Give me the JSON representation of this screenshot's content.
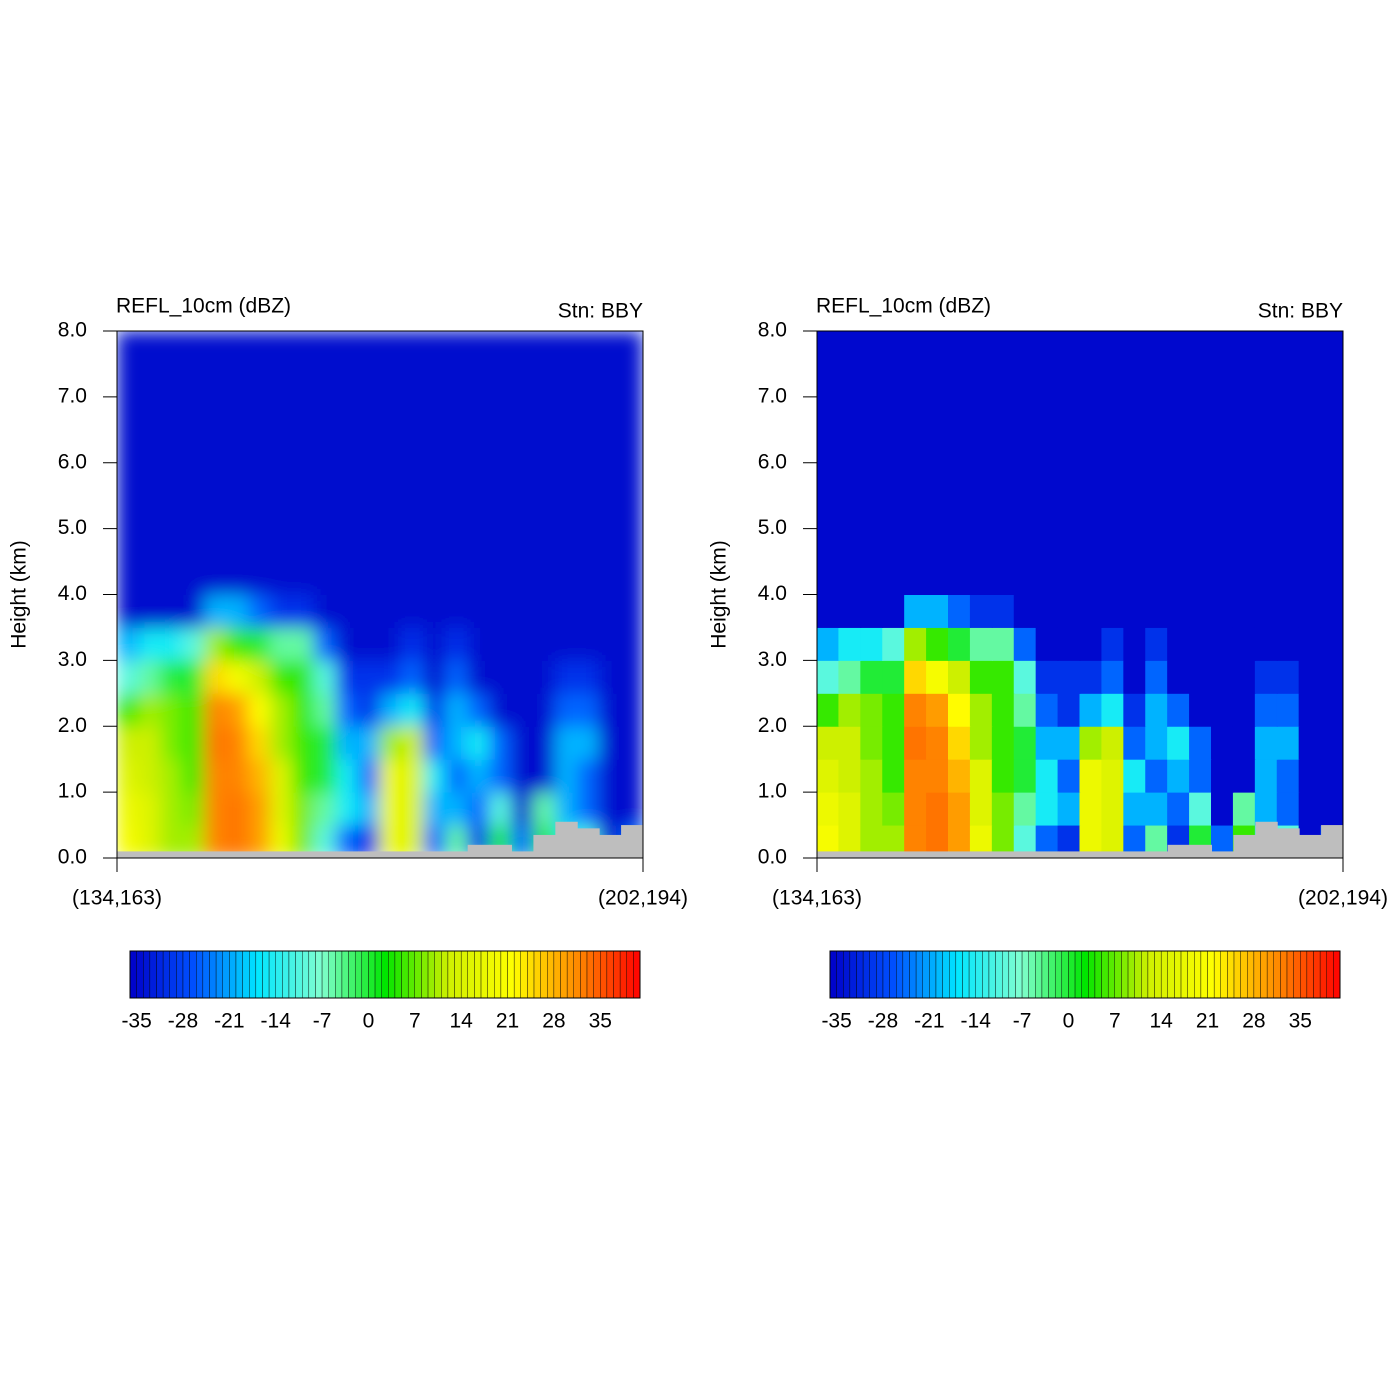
{
  "chart_data": [
    {
      "type": "heatmap",
      "smooth": true,
      "title": "REFL_10cm (dBZ)",
      "subtitle": "Stn: BBY",
      "y_label": "Height (km)",
      "x_tick_labels": [
        "(134,163)",
        "(202,194)"
      ],
      "ylim": [
        0,
        8
      ],
      "yticks": [
        {
          "value": 0,
          "label": "0.0"
        },
        {
          "value": 1,
          "label": "1.0"
        },
        {
          "value": 2,
          "label": "2.0"
        },
        {
          "value": 3,
          "label": "3.0"
        },
        {
          "value": 4,
          "label": "4.0"
        },
        {
          "value": 5,
          "label": "5.0"
        },
        {
          "value": 6,
          "label": "6.0"
        },
        {
          "value": 7,
          "label": "7.0"
        },
        {
          "value": 8,
          "label": "8.0"
        }
      ],
      "y_edges": [
        0,
        0.5,
        1,
        1.5,
        2,
        2.5,
        3,
        3.5,
        4,
        8
      ],
      "z": [
        [
          20,
          15,
          10,
          10,
          32,
          33,
          30,
          18,
          8,
          -10,
          -25,
          -30,
          18,
          15,
          -25,
          -5,
          -30,
          0,
          -25,
          5,
          -15,
          -10,
          -35,
          -25
        ],
        [
          18,
          15,
          10,
          8,
          32,
          33,
          30,
          15,
          8,
          -5,
          -15,
          -20,
          18,
          15,
          -20,
          -20,
          -25,
          -10,
          -35,
          -5,
          -20,
          -25,
          -35,
          -35
        ],
        [
          15,
          12,
          10,
          5,
          32,
          32,
          28,
          15,
          5,
          0,
          -15,
          -25,
          18,
          15,
          -15,
          -25,
          -20,
          -25,
          -35,
          -35,
          -20,
          -25,
          -35,
          -35
        ],
        [
          12,
          12,
          8,
          5,
          33,
          32,
          25,
          10,
          5,
          0,
          -20,
          -20,
          10,
          12,
          -25,
          -20,
          -15,
          -25,
          -35,
          -35,
          -20,
          -20,
          -35,
          -35
        ],
        [
          5,
          10,
          8,
          5,
          32,
          30,
          22,
          10,
          5,
          -5,
          -25,
          -30,
          -20,
          -15,
          -30,
          -20,
          -25,
          -35,
          -35,
          -35,
          -25,
          -25,
          -35,
          -35
        ],
        [
          -10,
          -5,
          0,
          0,
          25,
          20,
          12,
          5,
          5,
          -10,
          -30,
          -30,
          -30,
          -25,
          -35,
          -25,
          -35,
          -35,
          -35,
          -35,
          -30,
          -30,
          -35,
          -35
        ],
        [
          -20,
          -15,
          -15,
          -10,
          10,
          5,
          0,
          -5,
          -5,
          -25,
          -35,
          -35,
          -35,
          -30,
          -35,
          -30,
          -35,
          -35,
          -35,
          -35,
          -35,
          -35,
          -35,
          -35
        ],
        [
          -35,
          -35,
          -35,
          -35,
          -20,
          -20,
          -25,
          -30,
          -30,
          -35,
          -35,
          -35,
          -35,
          -35,
          -35,
          -35,
          -35,
          -35,
          -35,
          -35,
          -35,
          -35,
          -35,
          -35
        ],
        [
          -35,
          -35,
          -35,
          -35,
          -35,
          -35,
          -35,
          -35,
          -35,
          -35,
          -35,
          -35,
          -35,
          -35,
          -35,
          -35,
          -35,
          -35,
          -35,
          -35,
          -35,
          -35,
          -35,
          -35
        ]
      ],
      "terrain": [
        0.1,
        0.1,
        0.1,
        0.1,
        0.1,
        0.1,
        0.1,
        0.1,
        0.1,
        0.1,
        0.1,
        0.1,
        0.1,
        0.1,
        0.1,
        0.1,
        0.2,
        0.2,
        0.1,
        0.35,
        0.55,
        0.45,
        0.35,
        0.5
      ],
      "terrain_color": "#bebebe",
      "colormap": [
        "#0000c8",
        "#0050ff",
        "#00e6ff",
        "#80ffd0",
        "#00e600",
        "#d0f000",
        "#ffff00",
        "#ff8c00",
        "#ff0000"
      ],
      "colorbar": {
        "lim": [
          -36,
          41
        ],
        "level_spacing": 1,
        "ticks": [
          -35,
          -28,
          -21,
          -14,
          -7,
          0,
          7,
          14,
          21,
          28,
          35
        ]
      }
    },
    {
      "type": "heatmap",
      "smooth": false,
      "title": "REFL_10cm (dBZ)",
      "subtitle": "Stn: BBY",
      "y_label": "Height (km)",
      "x_tick_labels": [
        "(134,163)",
        "(202,194)"
      ],
      "ylim": [
        0,
        8
      ],
      "yticks": [
        {
          "value": 0,
          "label": "0.0"
        },
        {
          "value": 1,
          "label": "1.0"
        },
        {
          "value": 2,
          "label": "2.0"
        },
        {
          "value": 3,
          "label": "3.0"
        },
        {
          "value": 4,
          "label": "4.0"
        },
        {
          "value": 5,
          "label": "5.0"
        },
        {
          "value": 6,
          "label": "6.0"
        },
        {
          "value": 7,
          "label": "7.0"
        },
        {
          "value": 8,
          "label": "8.0"
        }
      ],
      "y_edges": [
        0,
        0.5,
        1,
        1.5,
        2,
        2.5,
        3,
        3.5,
        4,
        8
      ],
      "z": [
        [
          20,
          15,
          10,
          10,
          32,
          33,
          30,
          18,
          8,
          -10,
          -25,
          -30,
          18,
          15,
          -25,
          -5,
          -30,
          0,
          -25,
          5,
          -15,
          -10,
          -35,
          -25
        ],
        [
          18,
          15,
          10,
          8,
          32,
          33,
          30,
          15,
          8,
          -5,
          -15,
          -20,
          18,
          15,
          -20,
          -20,
          -25,
          -10,
          -35,
          -5,
          -20,
          -25,
          -35,
          -35
        ],
        [
          15,
          12,
          10,
          5,
          32,
          32,
          28,
          15,
          5,
          0,
          -15,
          -25,
          18,
          15,
          -15,
          -25,
          -20,
          -25,
          -35,
          -35,
          -20,
          -25,
          -35,
          -35
        ],
        [
          12,
          12,
          8,
          5,
          33,
          32,
          25,
          10,
          5,
          0,
          -20,
          -20,
          10,
          12,
          -25,
          -20,
          -15,
          -25,
          -35,
          -35,
          -20,
          -20,
          -35,
          -35
        ],
        [
          5,
          10,
          8,
          5,
          32,
          30,
          22,
          10,
          5,
          -5,
          -25,
          -30,
          -20,
          -15,
          -30,
          -20,
          -25,
          -35,
          -35,
          -35,
          -25,
          -25,
          -35,
          -35
        ],
        [
          -10,
          -5,
          0,
          0,
          25,
          20,
          12,
          5,
          5,
          -10,
          -30,
          -30,
          -30,
          -25,
          -35,
          -25,
          -35,
          -35,
          -35,
          -35,
          -30,
          -30,
          -35,
          -35
        ],
        [
          -20,
          -15,
          -15,
          -10,
          10,
          5,
          0,
          -5,
          -5,
          -25,
          -35,
          -35,
          -35,
          -30,
          -35,
          -30,
          -35,
          -35,
          -35,
          -35,
          -35,
          -35,
          -35,
          -35
        ],
        [
          -35,
          -35,
          -35,
          -35,
          -20,
          -20,
          -25,
          -30,
          -30,
          -35,
          -35,
          -35,
          -35,
          -35,
          -35,
          -35,
          -35,
          -35,
          -35,
          -35,
          -35,
          -35,
          -35,
          -35
        ],
        [
          -35,
          -35,
          -35,
          -35,
          -35,
          -35,
          -35,
          -35,
          -35,
          -35,
          -35,
          -35,
          -35,
          -35,
          -35,
          -35,
          -35,
          -35,
          -35,
          -35,
          -35,
          -35,
          -35,
          -35
        ]
      ],
      "terrain": [
        0.1,
        0.1,
        0.1,
        0.1,
        0.1,
        0.1,
        0.1,
        0.1,
        0.1,
        0.1,
        0.1,
        0.1,
        0.1,
        0.1,
        0.1,
        0.1,
        0.2,
        0.2,
        0.1,
        0.35,
        0.55,
        0.45,
        0.35,
        0.5
      ],
      "terrain_color": "#bebebe",
      "colormap": [
        "#0000c8",
        "#0050ff",
        "#00e6ff",
        "#80ffd0",
        "#00e600",
        "#d0f000",
        "#ffff00",
        "#ff8c00",
        "#ff0000"
      ],
      "colorbar": {
        "lim": [
          -36,
          41
        ],
        "level_spacing": 1,
        "ticks": [
          -35,
          -28,
          -21,
          -14,
          -7,
          0,
          7,
          14,
          21,
          28,
          35
        ]
      }
    }
  ]
}
